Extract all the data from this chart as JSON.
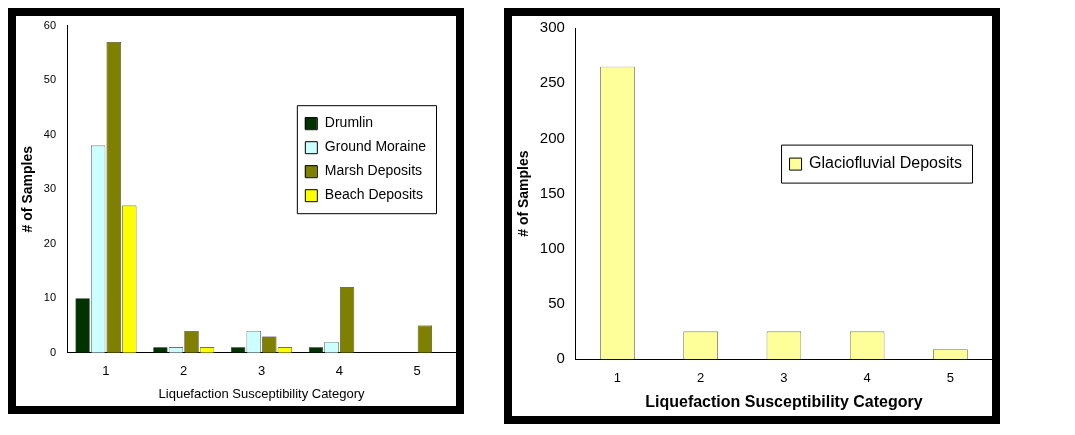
{
  "chart_data": [
    {
      "type": "bar",
      "categories": [
        "1",
        "2",
        "3",
        "4",
        "5"
      ],
      "xlabel": "Liquefaction Susceptibility Category",
      "ylabel": "# of Samples",
      "ylim": [
        0,
        60
      ],
      "yticks": [
        0,
        10,
        20,
        30,
        40,
        50,
        60
      ],
      "grid": false,
      "legend": "right",
      "series": [
        {
          "name": "Drumlin",
          "color": "#003300",
          "values": [
            10,
            1,
            1,
            1,
            0
          ]
        },
        {
          "name": "Ground Moraine",
          "color": "#ccffff",
          "values": [
            38,
            1,
            4,
            2,
            0
          ]
        },
        {
          "name": "Marsh Deposits",
          "color": "#808000",
          "values": [
            57,
            4,
            3,
            12,
            5
          ]
        },
        {
          "name": "Beach Deposits",
          "color": "#ffff00",
          "values": [
            27,
            1,
            1,
            0,
            0
          ]
        }
      ]
    },
    {
      "type": "bar",
      "categories": [
        "1",
        "2",
        "3",
        "4",
        "5"
      ],
      "xlabel": "Liquefaction Susceptibility Category",
      "ylabel": "# of Samples",
      "ylim": [
        0,
        300
      ],
      "yticks": [
        0,
        50,
        100,
        150,
        200,
        250,
        300
      ],
      "grid": false,
      "legend": "right",
      "series": [
        {
          "name": "Glaciofluvial Deposits",
          "color": "#ffff99",
          "values": [
            265,
            25,
            25,
            25,
            9
          ]
        }
      ]
    }
  ]
}
